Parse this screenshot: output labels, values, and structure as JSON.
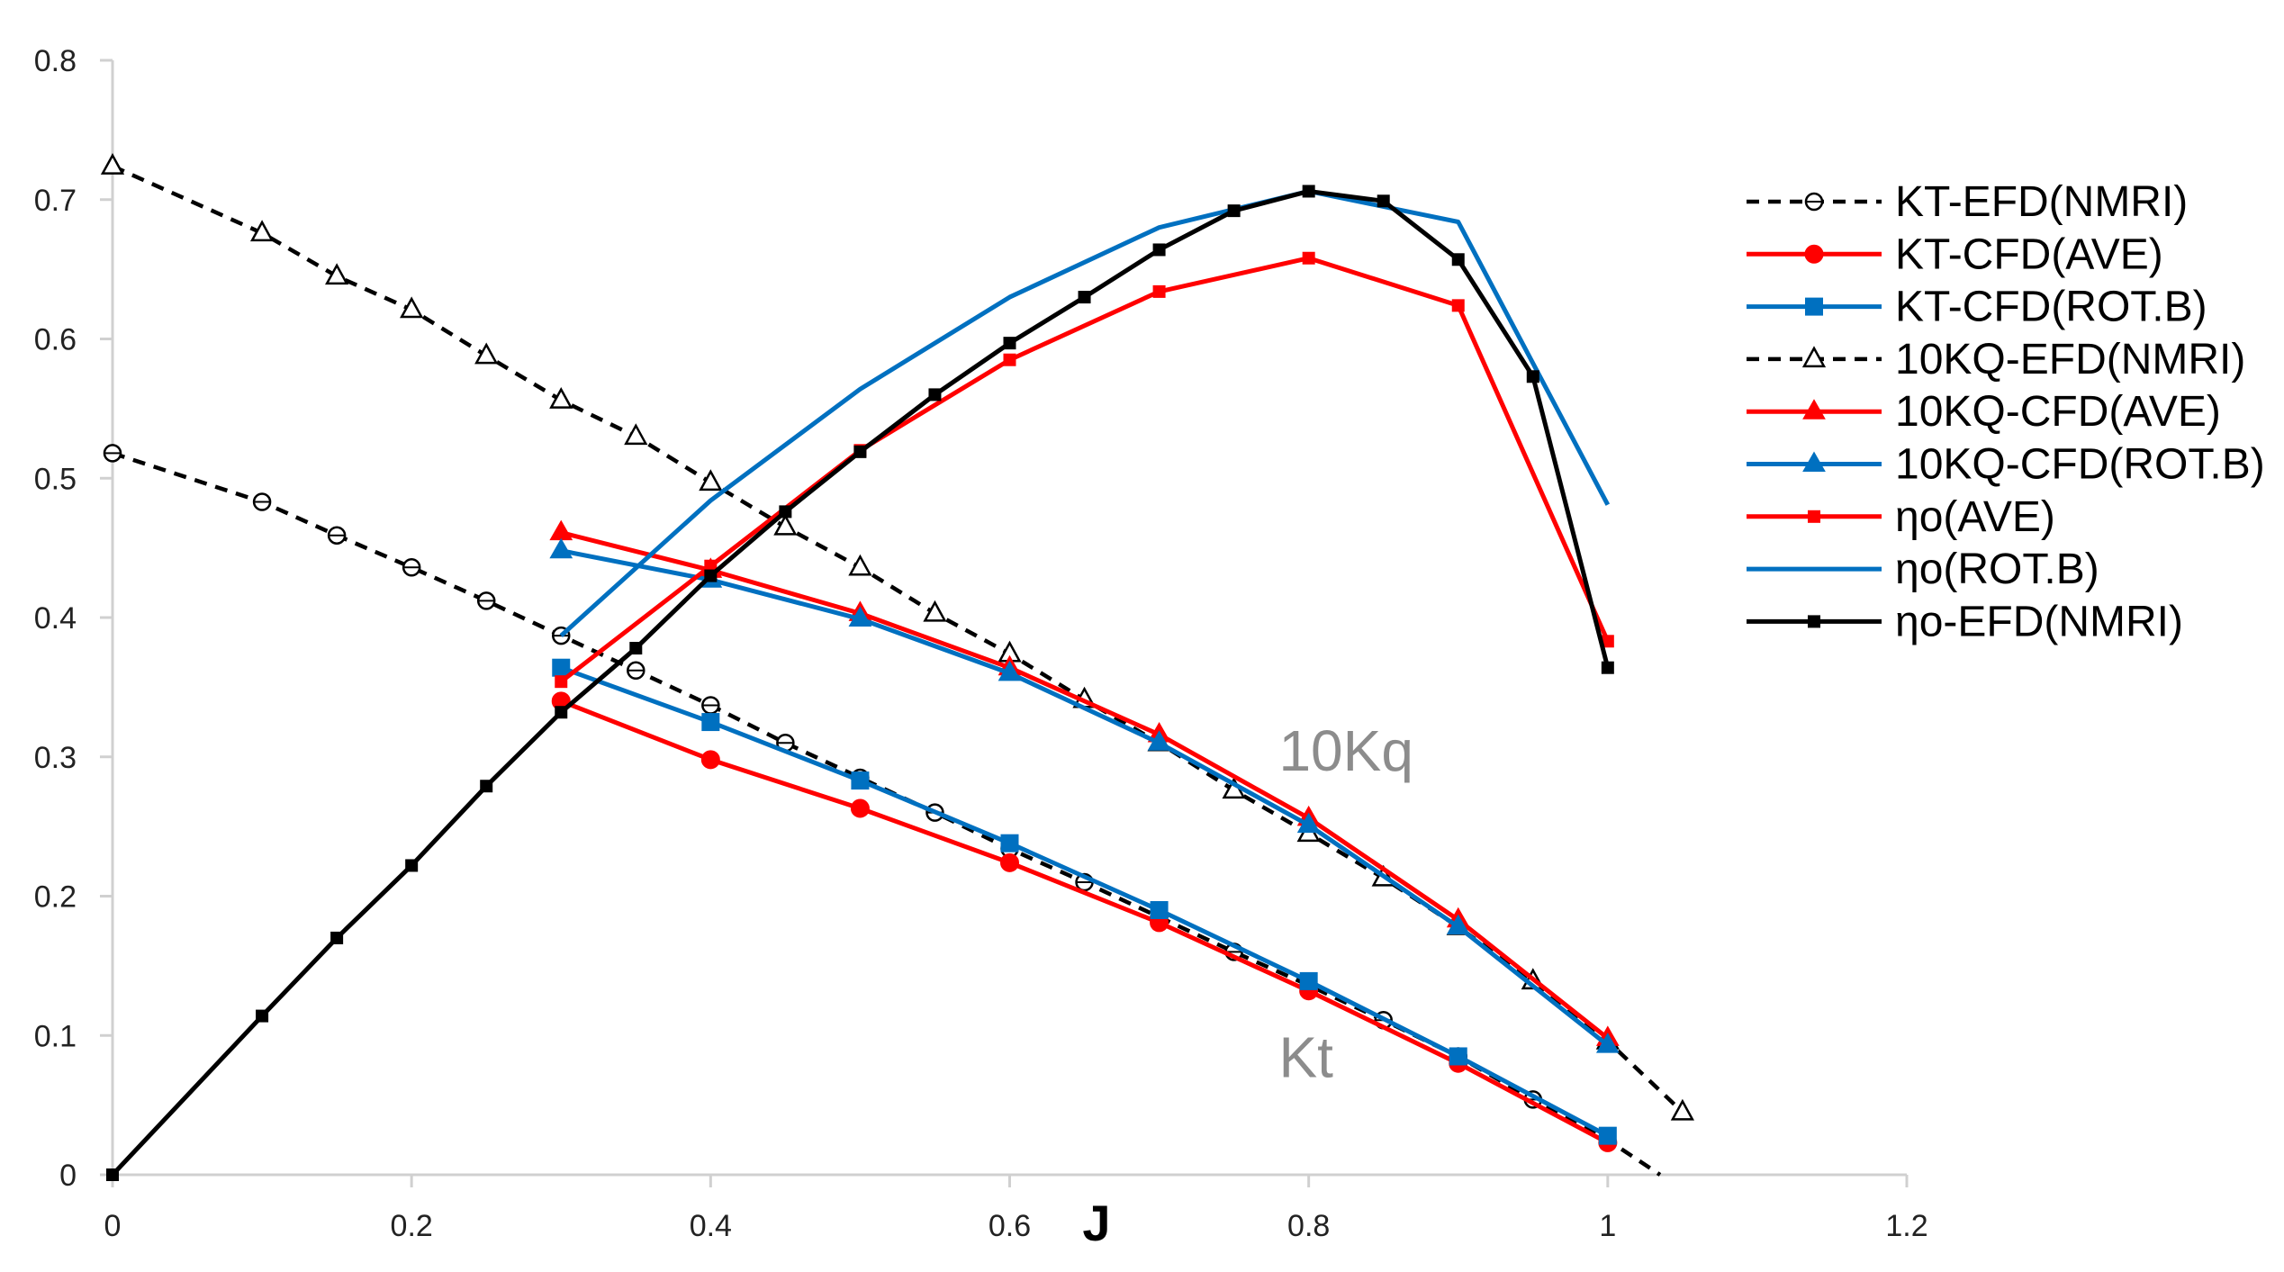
{
  "chart_data": {
    "type": "line",
    "title": "",
    "xlabel": "J",
    "ylabel": "",
    "xlim": [
      0,
      1.2
    ],
    "ylim": [
      0,
      0.8
    ],
    "xticks": [
      0,
      0.2,
      0.4,
      0.6,
      0.8,
      1,
      1.2
    ],
    "yticks": [
      0,
      0.1,
      0.2,
      0.3,
      0.4,
      0.5,
      0.6,
      0.7,
      0.8
    ],
    "xtick_labels": [
      "0",
      "0.2",
      "0.4",
      "0.6",
      "0.8",
      "1",
      "1.2"
    ],
    "ytick_labels": [
      "0",
      "0.1",
      "0.2",
      "0.3",
      "0.4",
      "0.5",
      "0.6",
      "0.7",
      "0.8"
    ],
    "grid": false,
    "legend_position": "right",
    "annotations": [
      {
        "text": "10Kq",
        "x": 0.78,
        "y": 0.29
      },
      {
        "text": "Kt",
        "x": 0.78,
        "y": 0.07
      }
    ],
    "series": [
      {
        "name": "KT-EFD(NMRI)",
        "color": "#000000",
        "dash": true,
        "marker": "circle-open",
        "x": [
          0,
          0.1,
          0.15,
          0.2,
          0.25,
          0.3,
          0.35,
          0.4,
          0.45,
          0.5,
          0.55,
          0.6,
          0.65,
          0.7,
          0.75,
          0.8,
          0.85,
          0.9,
          0.95,
          1.0,
          1.035
        ],
        "y": [
          0.518,
          0.483,
          0.459,
          0.436,
          0.412,
          0.387,
          0.362,
          0.337,
          0.31,
          0.285,
          0.26,
          0.234,
          0.21,
          0.185,
          0.16,
          0.136,
          0.111,
          0.085,
          0.054,
          0.025,
          0.0
        ],
        "markers_at": [
          0,
          0.1,
          0.15,
          0.2,
          0.25,
          0.3,
          0.35,
          0.4,
          0.45,
          0.5,
          0.55,
          0.6,
          0.65,
          0.7,
          0.75,
          0.8,
          0.85,
          0.9,
          0.95
        ]
      },
      {
        "name": "KT-CFD(AVE)",
        "color": "#ff0000",
        "dash": false,
        "marker": "circle",
        "x": [
          0.3,
          0.4,
          0.5,
          0.6,
          0.7,
          0.8,
          0.9,
          1.0
        ],
        "y": [
          0.34,
          0.298,
          0.263,
          0.224,
          0.181,
          0.132,
          0.08,
          0.023
        ]
      },
      {
        "name": "KT-CFD(ROT.B)",
        "color": "#0070c0",
        "dash": false,
        "marker": "square",
        "x": [
          0.3,
          0.4,
          0.5,
          0.6,
          0.7,
          0.8,
          0.9,
          1.0
        ],
        "y": [
          0.364,
          0.325,
          0.283,
          0.238,
          0.19,
          0.139,
          0.085,
          0.028
        ]
      },
      {
        "name": "10KQ-EFD(NMRI)",
        "color": "#000000",
        "dash": true,
        "marker": "triangle-open",
        "x": [
          0,
          0.1,
          0.15,
          0.2,
          0.25,
          0.3,
          0.35,
          0.4,
          0.45,
          0.5,
          0.55,
          0.6,
          0.65,
          0.7,
          0.75,
          0.8,
          0.85,
          0.9,
          0.95,
          1.0,
          1.05
        ],
        "y": [
          0.724,
          0.676,
          0.645,
          0.621,
          0.588,
          0.556,
          0.53,
          0.497,
          0.465,
          0.436,
          0.403,
          0.374,
          0.341,
          0.31,
          0.276,
          0.245,
          0.213,
          0.178,
          0.139,
          0.096,
          0.045
        ]
      },
      {
        "name": "10KQ-CFD(AVE)",
        "color": "#ff0000",
        "dash": false,
        "marker": "triangle",
        "x": [
          0.3,
          0.4,
          0.5,
          0.6,
          0.7,
          0.8,
          0.9,
          1.0
        ],
        "y": [
          0.461,
          0.434,
          0.403,
          0.364,
          0.316,
          0.256,
          0.183,
          0.098
        ]
      },
      {
        "name": "10KQ-CFD(ROT.B)",
        "color": "#0070c0",
        "dash": false,
        "marker": "triangle",
        "x": [
          0.3,
          0.4,
          0.5,
          0.6,
          0.7,
          0.8,
          0.9,
          1.0
        ],
        "y": [
          0.448,
          0.427,
          0.399,
          0.36,
          0.31,
          0.251,
          0.178,
          0.093
        ]
      },
      {
        "name": "ηo(AVE)",
        "color": "#ff0000",
        "dash": false,
        "marker": "square-small",
        "x": [
          0.3,
          0.4,
          0.5,
          0.6,
          0.7,
          0.8,
          0.9,
          1.0
        ],
        "y": [
          0.354,
          0.437,
          0.52,
          0.585,
          0.634,
          0.658,
          0.624,
          0.383
        ]
      },
      {
        "name": "ηo(ROT.B)",
        "color": "#0070c0",
        "dash": false,
        "marker": "none",
        "x": [
          0.3,
          0.4,
          0.5,
          0.6,
          0.7,
          0.8,
          0.9,
          1.0
        ],
        "y": [
          0.387,
          0.484,
          0.564,
          0.63,
          0.68,
          0.706,
          0.684,
          0.481
        ]
      },
      {
        "name": "ηo-EFD(NMRI)",
        "color": "#000000",
        "dash": false,
        "marker": "square-small",
        "x": [
          0,
          0.1,
          0.15,
          0.2,
          0.25,
          0.3,
          0.35,
          0.4,
          0.45,
          0.5,
          0.55,
          0.6,
          0.65,
          0.7,
          0.75,
          0.8,
          0.85,
          0.9,
          0.95,
          1.0
        ],
        "y": [
          0.0,
          0.114,
          0.17,
          0.222,
          0.279,
          0.332,
          0.378,
          0.43,
          0.476,
          0.519,
          0.56,
          0.597,
          0.63,
          0.664,
          0.692,
          0.706,
          0.699,
          0.657,
          0.573,
          0.364
        ]
      }
    ]
  }
}
